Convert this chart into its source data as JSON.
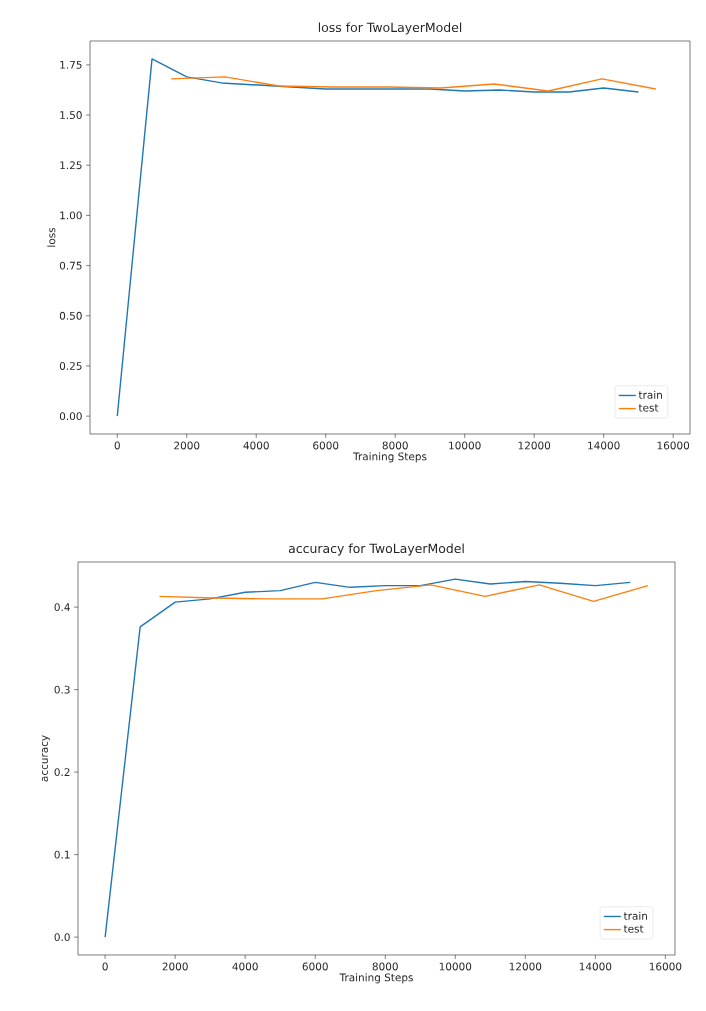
{
  "chart_data": [
    {
      "type": "line",
      "title": "loss for TwoLayerModel",
      "xlabel": "Training Steps",
      "ylabel": "loss",
      "legend": "bottom right",
      "grid": false,
      "marker": "none",
      "line_style": "solid",
      "xlim": [
        -785,
        16485
      ],
      "ylim": [
        -0.089,
        1.869
      ],
      "xticks": [
        0,
        2000,
        4000,
        6000,
        8000,
        10000,
        12000,
        14000,
        16000
      ],
      "yticks": [
        {
          "value": 0,
          "label": "0.00"
        },
        {
          "value": 0.25,
          "label": "0.25"
        },
        {
          "value": 0.5,
          "label": "0.50"
        },
        {
          "value": 0.75,
          "label": "0.75"
        },
        {
          "value": 1,
          "label": "1.00"
        },
        {
          "value": 1.25,
          "label": "1.25"
        },
        {
          "value": 1.5,
          "label": "1.50"
        },
        {
          "value": 1.75,
          "label": "1.75"
        }
      ],
      "series": [
        {
          "name": "train",
          "color": "#1f77b4",
          "x": [
            0,
            1000,
            2000,
            3000,
            4000,
            5000,
            6000,
            7000,
            8000,
            9000,
            10000,
            11000,
            12000,
            13000,
            14000,
            15000
          ],
          "values": [
            0,
            1.78,
            1.69,
            1.66,
            1.65,
            1.64,
            1.63,
            1.63,
            1.63,
            1.63,
            1.62,
            1.625,
            1.615,
            1.615,
            1.635,
            1.615
          ]
        },
        {
          "name": "test",
          "color": "#ff7f0e",
          "x": [
            1550,
            3100,
            4650,
            6200,
            7750,
            9300,
            10850,
            12400,
            13950,
            15500
          ],
          "values": [
            1.68,
            1.69,
            1.645,
            1.64,
            1.64,
            1.635,
            1.655,
            1.62,
            1.68,
            1.63
          ]
        }
      ]
    },
    {
      "type": "line",
      "title": "accuracy for TwoLayerModel",
      "xlabel": "Training Steps",
      "ylabel": "accuracy",
      "legend": "bottom right",
      "grid": false,
      "marker": "none",
      "line_style": "solid",
      "xlim": [
        -775,
        16275
      ],
      "ylim": [
        -0.0217,
        0.4547
      ],
      "xticks": [
        0,
        2000,
        4000,
        6000,
        8000,
        10000,
        12000,
        14000,
        16000
      ],
      "yticks": [
        {
          "value": 0,
          "label": "0.0"
        },
        {
          "value": 0.1,
          "label": "0.1"
        },
        {
          "value": 0.2,
          "label": "0.2"
        },
        {
          "value": 0.3,
          "label": "0.3"
        },
        {
          "value": 0.4,
          "label": "0.4"
        }
      ],
      "series": [
        {
          "name": "train",
          "color": "#1f77b4",
          "x": [
            0,
            1000,
            2000,
            3000,
            4000,
            5000,
            6000,
            7000,
            8000,
            9000,
            10000,
            11000,
            12000,
            13000,
            14000,
            15000
          ],
          "values": [
            0,
            0.376,
            0.406,
            0.41,
            0.418,
            0.42,
            0.43,
            0.424,
            0.426,
            0.426,
            0.434,
            0.428,
            0.431,
            0.429,
            0.426,
            0.43
          ]
        },
        {
          "name": "test",
          "color": "#ff7f0e",
          "x": [
            1550,
            3100,
            4650,
            6200,
            7750,
            9300,
            10850,
            12400,
            13950,
            15500
          ],
          "values": [
            0.413,
            0.411,
            0.41,
            0.41,
            0.42,
            0.427,
            0.413,
            0.427,
            0.407,
            0.426
          ]
        }
      ]
    }
  ]
}
